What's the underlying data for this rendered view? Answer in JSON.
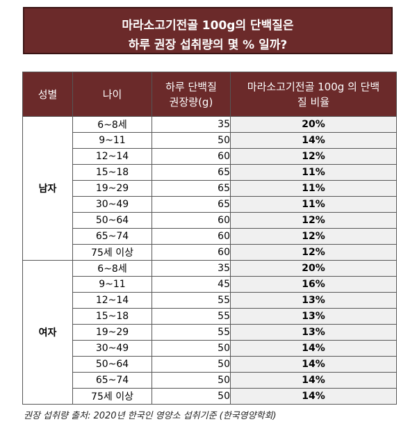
{
  "title": {
    "line1": "마라소고기전골 100g의 단백질은",
    "line2": "하루 권장 섭취량의 몇 % 일까?"
  },
  "headers": {
    "gender": "성별",
    "age": "나이",
    "protein_line1": "하루 단백질",
    "protein_line2": "권장량(g)",
    "ratio_line1": "마라소고기전골 100g 의 단백",
    "ratio_line2": "질 비율"
  },
  "groups": [
    {
      "label": "남자",
      "rows": [
        {
          "age": "6~8세",
          "protein": "35",
          "ratio": "20%"
        },
        {
          "age": "9~11",
          "protein": "50",
          "ratio": "14%"
        },
        {
          "age": "12~14",
          "protein": "60",
          "ratio": "12%"
        },
        {
          "age": "15~18",
          "protein": "65",
          "ratio": "11%"
        },
        {
          "age": "19~29",
          "protein": "65",
          "ratio": "11%"
        },
        {
          "age": "30~49",
          "protein": "65",
          "ratio": "11%"
        },
        {
          "age": "50~64",
          "protein": "60",
          "ratio": "12%"
        },
        {
          "age": "65~74",
          "protein": "60",
          "ratio": "12%"
        },
        {
          "age": "75세 이상",
          "protein": "60",
          "ratio": "12%"
        }
      ]
    },
    {
      "label": "여자",
      "rows": [
        {
          "age": "6~8세",
          "protein": "35",
          "ratio": "20%"
        },
        {
          "age": "9~11",
          "protein": "45",
          "ratio": "16%"
        },
        {
          "age": "12~14",
          "protein": "55",
          "ratio": "13%"
        },
        {
          "age": "15~18",
          "protein": "55",
          "ratio": "13%"
        },
        {
          "age": "19~29",
          "protein": "55",
          "ratio": "13%"
        },
        {
          "age": "30~49",
          "protein": "50",
          "ratio": "14%"
        },
        {
          "age": "50~64",
          "protein": "50",
          "ratio": "14%"
        },
        {
          "age": "65~74",
          "protein": "50",
          "ratio": "14%"
        },
        {
          "age": "75세 이상",
          "protein": "50",
          "ratio": "14%"
        }
      ]
    }
  ],
  "footer": "권장 섭취량 출처: 2020년 한국인 영양소 섭취기준 (한국영양학회)"
}
